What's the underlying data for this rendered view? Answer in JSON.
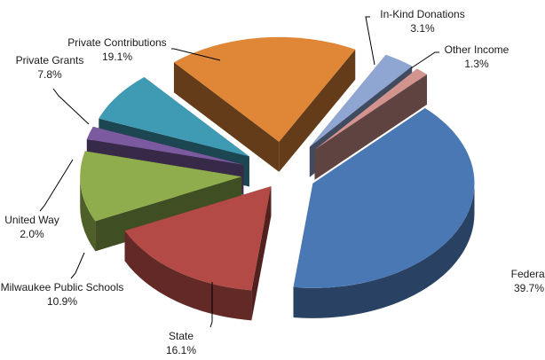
{
  "chart_data": {
    "type": "pie",
    "title": "",
    "style": "3d-exploded",
    "slices": [
      {
        "label": "Federal",
        "percent": "39.7%",
        "value": 39.7,
        "color": "#4a78b4"
      },
      {
        "label": "State",
        "percent": "16.1%",
        "value": 16.1,
        "color": "#b34a45"
      },
      {
        "label": "Milwaukee Public Schools",
        "percent": "10.9%",
        "value": 10.9,
        "color": "#8fad4d"
      },
      {
        "label": "United Way",
        "percent": "2.0%",
        "value": 2.0,
        "color": "#7b5aa0"
      },
      {
        "label": "Private Grants",
        "percent": "7.8%",
        "value": 7.8,
        "color": "#3e9bb3"
      },
      {
        "label": "Private Contributions",
        "percent": "19.1%",
        "value": 19.1,
        "color": "#df8637"
      },
      {
        "label": "In-Kind Donations",
        "percent": "3.1%",
        "value": 3.1,
        "color": "#8fa6d2"
      },
      {
        "label": "Other Income",
        "percent": "1.3%",
        "value": 1.3,
        "color": "#d39490"
      }
    ]
  }
}
